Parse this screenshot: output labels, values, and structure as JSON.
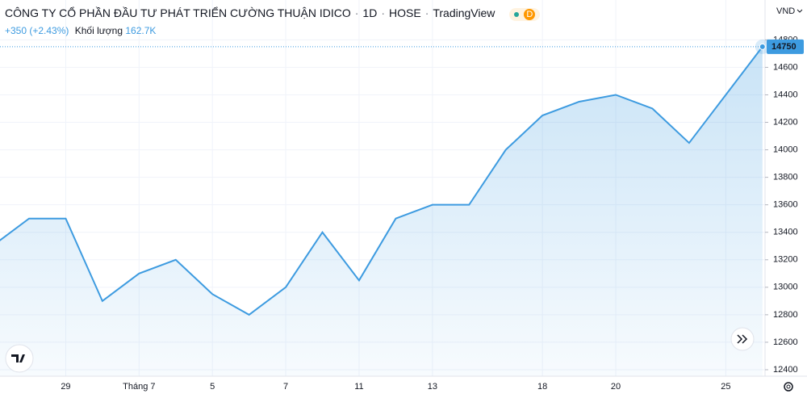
{
  "header": {
    "symbol": "CÔNG TY CỔ PHẦN ĐẦU TƯ PHÁT TRIỂN CƯỜNG THUẬN IDICO",
    "interval": "1D",
    "exchange": "HOSE",
    "source": "TradingView",
    "badge": "D",
    "change": "+350 (+2.43%)",
    "volume_label": "Khối lượng",
    "volume": "162.7K"
  },
  "chart_data": {
    "type": "area",
    "y_unit": "VND",
    "color": "#3d9be0",
    "grid": true,
    "categories": [
      null,
      null,
      "29",
      null,
      "Tháng 7",
      null,
      "5",
      null,
      "7",
      null,
      "11",
      null,
      "13",
      null,
      null,
      "18",
      null,
      "20",
      null,
      null,
      "25",
      null
    ],
    "values": [
      13300,
      13500,
      13500,
      12900,
      13100,
      13200,
      12950,
      12800,
      13000,
      13400,
      13050,
      13500,
      13600,
      13600,
      14000,
      14250,
      14350,
      14400,
      14300,
      14050,
      14400,
      14750
    ],
    "ylim": [
      12300,
      15090
    ],
    "yticks": [
      12400,
      12600,
      12800,
      13000,
      13200,
      13400,
      13600,
      13800,
      14000,
      14200,
      14400,
      14600,
      14800
    ]
  }
}
